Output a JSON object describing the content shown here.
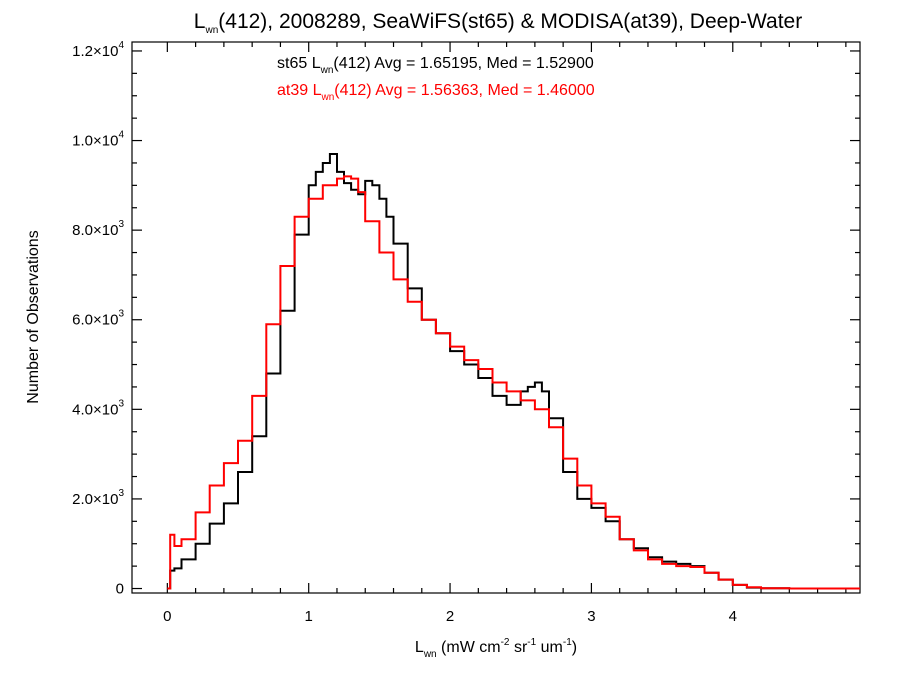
{
  "chart_data": {
    "type": "line",
    "title": {
      "prefix": "L",
      "sub": "wn",
      "rest": "(412), 2008289, SeaWiFS(st65) & MODISA(at39), Deep-Water"
    },
    "xlabel": {
      "prefix": "L",
      "sub": "wn",
      "a": " (mW cm",
      "sup1": "-2",
      "b": " sr",
      "sup2": "-1",
      "c": " um",
      "sup3": "-1",
      "d": ")"
    },
    "ylabel": "Number of Observations",
    "xlim": [
      -0.25,
      4.9
    ],
    "ylim": [
      -100,
      12200
    ],
    "x_ticks": [
      {
        "v": 0,
        "label": "0"
      },
      {
        "v": 1,
        "label": "1"
      },
      {
        "v": 2,
        "label": "2"
      },
      {
        "v": 3,
        "label": "3"
      },
      {
        "v": 4,
        "label": "4"
      }
    ],
    "y_ticks": [
      {
        "v": 0,
        "mant": "0",
        "exp": ""
      },
      {
        "v": 2000,
        "mant": "2.0×10",
        "exp": "3"
      },
      {
        "v": 4000,
        "mant": "4.0×10",
        "exp": "3"
      },
      {
        "v": 6000,
        "mant": "6.0×10",
        "exp": "3"
      },
      {
        "v": 8000,
        "mant": "8.0×10",
        "exp": "3"
      },
      {
        "v": 10000,
        "mant": "1.0×10",
        "exp": "4"
      },
      {
        "v": 12000,
        "mant": "1.2×10",
        "exp": "4"
      }
    ],
    "stats": [
      {
        "pre": "st65 L",
        "sub": "wn",
        "post": "(412) Avg = 1.65195, Med = 1.52900",
        "color": "#000000"
      },
      {
        "pre": "at39 L",
        "sub": "wn",
        "post": "(412) Avg = 1.56363, Med = 1.46000",
        "color": "#ff0000"
      }
    ],
    "series": [
      {
        "color": "#000000",
        "x": [
          0.0,
          0.02,
          0.05,
          0.1,
          0.2,
          0.3,
          0.4,
          0.5,
          0.6,
          0.7,
          0.8,
          0.9,
          1.0,
          1.05,
          1.1,
          1.15,
          1.2,
          1.25,
          1.3,
          1.35,
          1.4,
          1.45,
          1.5,
          1.55,
          1.6,
          1.7,
          1.8,
          1.9,
          2.0,
          2.1,
          2.2,
          2.3,
          2.4,
          2.45,
          2.5,
          2.55,
          2.6,
          2.65,
          2.7,
          2.8,
          2.9,
          3.0,
          3.1,
          3.2,
          3.3,
          3.4,
          3.5,
          3.6,
          3.7,
          3.8,
          3.9,
          4.0,
          4.1,
          4.2,
          4.4,
          4.9
        ],
        "y": [
          0,
          400,
          450,
          650,
          1000,
          1450,
          1900,
          2600,
          3400,
          4800,
          6200,
          7900,
          9000,
          9300,
          9500,
          9700,
          9300,
          9050,
          8900,
          8800,
          9100,
          9000,
          8700,
          8300,
          7700,
          6700,
          6000,
          5700,
          5300,
          5000,
          4700,
          4300,
          4100,
          4100,
          4400,
          4500,
          4600,
          4400,
          3800,
          2600,
          2000,
          1800,
          1500,
          1100,
          900,
          700,
          600,
          550,
          500,
          350,
          200,
          80,
          20,
          5,
          0,
          0
        ]
      },
      {
        "color": "#ff0000",
        "x": [
          0.0,
          0.02,
          0.05,
          0.1,
          0.2,
          0.3,
          0.4,
          0.5,
          0.6,
          0.7,
          0.8,
          0.9,
          1.0,
          1.1,
          1.2,
          1.25,
          1.3,
          1.35,
          1.4,
          1.5,
          1.6,
          1.7,
          1.8,
          1.9,
          2.0,
          2.1,
          2.2,
          2.3,
          2.4,
          2.5,
          2.6,
          2.7,
          2.8,
          2.9,
          3.0,
          3.1,
          3.2,
          3.3,
          3.4,
          3.5,
          3.6,
          3.7,
          3.8,
          3.9,
          4.0,
          4.1,
          4.2,
          4.4,
          4.9
        ],
        "y": [
          0,
          1200,
          950,
          1100,
          1700,
          2300,
          2800,
          3300,
          4300,
          5900,
          7200,
          8300,
          8700,
          9000,
          9150,
          9200,
          9150,
          8850,
          8200,
          7500,
          6900,
          6400,
          6000,
          5700,
          5400,
          5100,
          4900,
          4600,
          4400,
          4200,
          4000,
          3600,
          2900,
          2300,
          1900,
          1600,
          1100,
          850,
          650,
          550,
          500,
          480,
          350,
          200,
          80,
          30,
          5,
          0,
          0
        ]
      }
    ]
  }
}
